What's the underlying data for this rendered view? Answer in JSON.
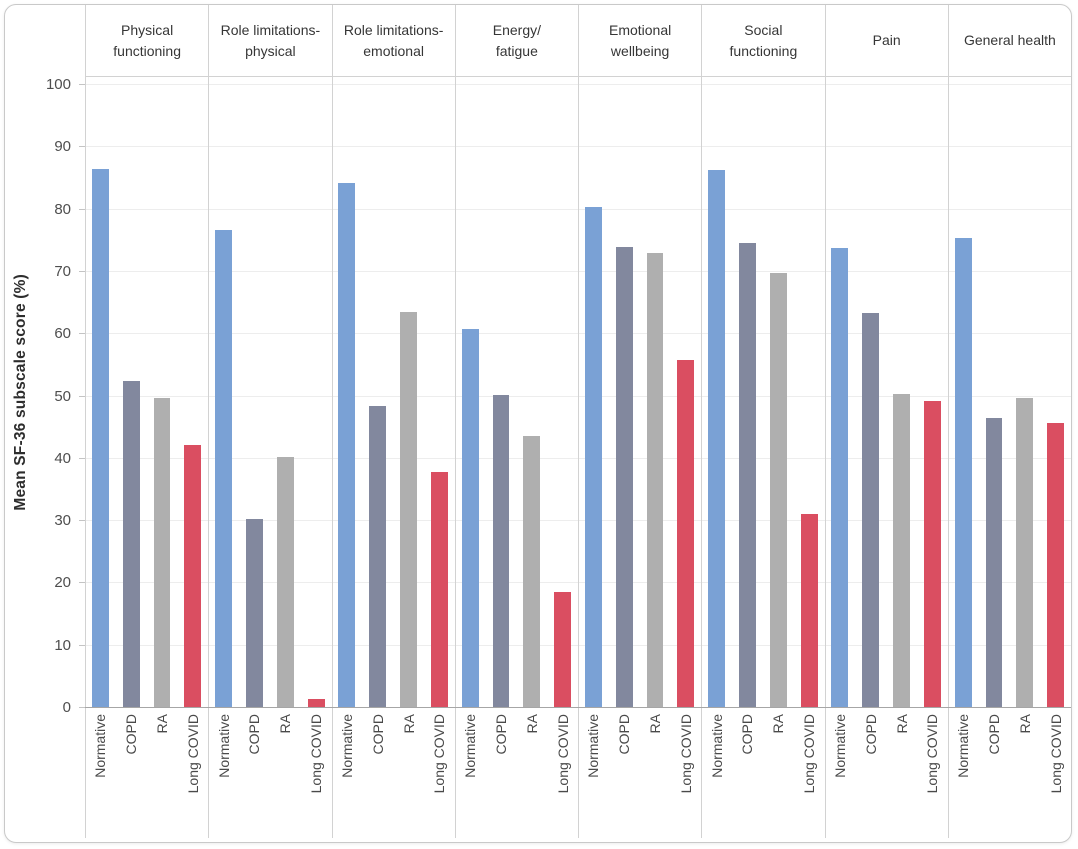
{
  "chart_data": {
    "type": "bar",
    "title": "",
    "ylabel": "Mean SF-36 subscale score (%)",
    "xlabel": "",
    "ylim": [
      0,
      100
    ],
    "yticks": [
      0,
      10,
      20,
      30,
      40,
      50,
      60,
      70,
      80,
      90,
      100
    ],
    "grid": "horizontal",
    "legend_position": "none (groups labeled on x-axis)",
    "panels": [
      {
        "id": "physical-functioning",
        "label_lines": [
          "Physical",
          "functioning"
        ]
      },
      {
        "id": "role-limitations-physical",
        "label_lines": [
          "Role limitations-",
          "physical"
        ]
      },
      {
        "id": "role-limitations-emotional",
        "label_lines": [
          "Role limitations-",
          "emotional"
        ]
      },
      {
        "id": "energy-fatigue",
        "label_lines": [
          "Energy/",
          "fatigue"
        ]
      },
      {
        "id": "emotional-wellbeing",
        "label_lines": [
          "Emotional",
          "wellbeing"
        ]
      },
      {
        "id": "social-functioning",
        "label_lines": [
          "Social",
          "functioning"
        ]
      },
      {
        "id": "pain",
        "label_lines": [
          "Pain"
        ]
      },
      {
        "id": "general-health",
        "label_lines": [
          "General health"
        ]
      }
    ],
    "groups": [
      "Normative",
      "COPD",
      "RA",
      "Long COVID"
    ],
    "series": [
      {
        "name": "Normative",
        "color": "#7AA1D5",
        "values": [
          86.5,
          76.8,
          84.3,
          60.8,
          80.4,
          86.3,
          73.8,
          75.4
        ]
      },
      {
        "name": "COPD",
        "color": "#82889E",
        "values": [
          52.5,
          30.4,
          48.4,
          50.3,
          74.0,
          74.6,
          63.4,
          46.6
        ]
      },
      {
        "name": "RA",
        "color": "#AFAFAF",
        "values": [
          49.8,
          40.3,
          63.6,
          43.7,
          73.0,
          69.9,
          50.4,
          49.8
        ]
      },
      {
        "name": "Long COVID",
        "color": "#DA4E61",
        "values": [
          42.2,
          1.5,
          37.9,
          18.7,
          55.8,
          31.1,
          49.3,
          45.8
        ]
      }
    ]
  },
  "style_colors": {
    "gridline": "#ededed",
    "panel_divider": "#d2d2d2",
    "axis_baseline": "#a6a6a6",
    "tick_text": "#4e4e4e",
    "header_text": "#363636"
  }
}
